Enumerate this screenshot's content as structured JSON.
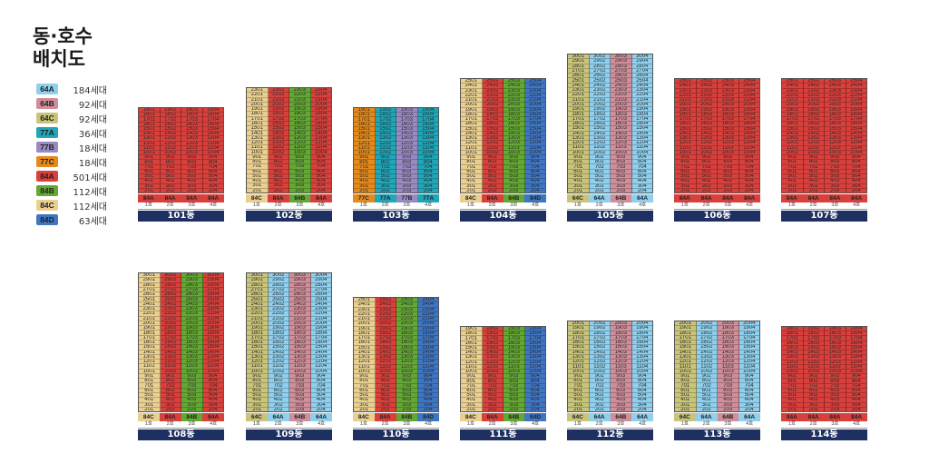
{
  "title": [
    "동·호수",
    "배치도"
  ],
  "colors": {
    "64A": "#8fd0ee",
    "64B": "#cf8e9a",
    "64C": "#c9c47a",
    "77A": "#1fa6b8",
    "77B": "#9b8ac2",
    "77C": "#e58a1a",
    "84A": "#d9403c",
    "84B": "#64a834",
    "84C": "#ead090",
    "84D": "#3f76c4"
  },
  "legend": [
    {
      "type": "64A",
      "count": "184세대"
    },
    {
      "type": "64B",
      "count": "92세대"
    },
    {
      "type": "64C",
      "count": "92세대"
    },
    {
      "type": "77A",
      "count": "36세대"
    },
    {
      "type": "77B",
      "count": "18세대"
    },
    {
      "type": "77C",
      "count": "18세대"
    },
    {
      "type": "84A",
      "count": "501세대"
    },
    {
      "type": "84B",
      "count": "112세대"
    },
    {
      "type": "84C",
      "count": "112세대"
    },
    {
      "type": "84D",
      "count": "63세대"
    }
  ],
  "buildings": [
    {
      "name": "101동",
      "floors": 18,
      "types": [
        "84A",
        "84A",
        "84A",
        "84A"
      ],
      "lines": [
        "1호",
        "2호",
        "3호",
        "4호"
      ]
    },
    {
      "name": "102동",
      "floors": 22,
      "types": [
        "84C",
        "84A",
        "84B",
        "84A"
      ],
      "lines": [
        "1호",
        "2호",
        "3호",
        "4호"
      ]
    },
    {
      "name": "103동",
      "floors": 18,
      "types": [
        "77C",
        "77A",
        "77B",
        "77A"
      ],
      "lines": [
        "1호",
        "2호",
        "3호",
        "4호"
      ]
    },
    {
      "name": "104동",
      "floors": 24,
      "types": [
        "84C",
        "84A",
        "84B",
        "84D"
      ],
      "lines": [
        "1호",
        "2호",
        "3호",
        "4호"
      ]
    },
    {
      "name": "105동",
      "floors": 29,
      "types": [
        "64C",
        "64A",
        "64B",
        "64A"
      ],
      "lines": [
        "1호",
        "2호",
        "3호",
        "4호"
      ]
    },
    {
      "name": "106동",
      "floors": 24,
      "types": [
        "84A",
        "84A",
        "84A",
        "84A"
      ],
      "lines": [
        "1호",
        "2호",
        "3호",
        "4호"
      ]
    },
    {
      "name": "107동",
      "floors": 24,
      "types": [
        "84A",
        "84A",
        "84A",
        "84A"
      ],
      "lines": [
        "1호",
        "2호",
        "3호",
        "4호"
      ]
    },
    {
      "name": "108동",
      "floors": 29,
      "types": [
        "84C",
        "84A",
        "84B",
        "84A"
      ],
      "lines": [
        "1호",
        "2호",
        "3호",
        "4호"
      ]
    },
    {
      "name": "109동",
      "floors": 29,
      "types": [
        "64C",
        "64A",
        "64B",
        "64A"
      ],
      "lines": [
        "1호",
        "2호",
        "3호",
        "4호"
      ]
    },
    {
      "name": "110동",
      "floors": 24,
      "types": [
        "84C",
        "84A",
        "84B",
        "84D"
      ],
      "lines": [
        "1호",
        "2호",
        "3호",
        "4호"
      ]
    },
    {
      "name": "111동",
      "floors": 18,
      "types": [
        "84C",
        "84A",
        "84B",
        "84D"
      ],
      "lines": [
        "1호",
        "2호",
        "3호",
        "4호"
      ]
    },
    {
      "name": "112동",
      "floors": 19,
      "types": [
        "64C",
        "64A",
        "64B",
        "64A"
      ],
      "lines": [
        "1호",
        "2호",
        "3호",
        "4호"
      ]
    },
    {
      "name": "113동",
      "floors": 19,
      "types": [
        "64C",
        "64A",
        "64B",
        "64A"
      ],
      "lines": [
        "1호",
        "2호",
        "3호",
        "4호"
      ]
    },
    {
      "name": "114동",
      "floors": 18,
      "types": [
        "84A",
        "84A",
        "84A",
        "84A"
      ],
      "lines": [
        "1호",
        "2호",
        "3호",
        "4호"
      ]
    }
  ]
}
